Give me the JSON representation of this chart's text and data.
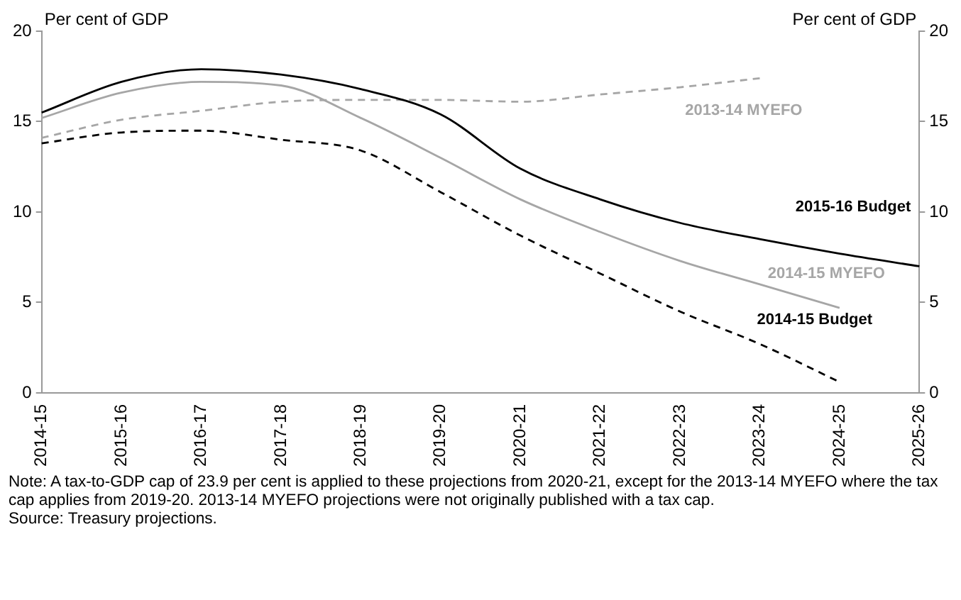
{
  "chart_data": {
    "type": "line",
    "ylabel": "Per cent of GDP",
    "y2label": "Per cent of GDP",
    "categories": [
      "2014-15",
      "2015-16",
      "2016-17",
      "2017-18",
      "2018-19",
      "2019-20",
      "2020-21",
      "2021-22",
      "2022-23",
      "2023-24",
      "2024-25",
      "2025-26"
    ],
    "series": [
      {
        "name": "2015-16 Budget",
        "color": "#000000",
        "line_style": "solid",
        "values": [
          15.5,
          17.2,
          17.9,
          17.6,
          16.8,
          15.4,
          12.4,
          10.7,
          9.4,
          8.5,
          7.7,
          7.0
        ]
      },
      {
        "name": "2014-15 MYEFO",
        "color": "#a6a6a6",
        "line_style": "solid",
        "values": [
          15.2,
          16.6,
          17.2,
          17.0,
          15.2,
          13.0,
          10.7,
          8.9,
          7.3,
          6.0,
          4.7,
          null
        ]
      },
      {
        "name": "2014-15 Budget",
        "color": "#000000",
        "line_style": "dashed",
        "values": [
          13.8,
          14.4,
          14.5,
          14.0,
          13.4,
          11.1,
          8.7,
          6.6,
          4.5,
          2.7,
          0.6,
          null
        ]
      },
      {
        "name": "2013-14 MYEFO",
        "color": "#a6a6a6",
        "line_style": "dashed",
        "values": [
          14.1,
          15.1,
          15.6,
          16.1,
          16.2,
          16.2,
          16.1,
          16.5,
          16.9,
          17.4,
          null,
          null
        ]
      }
    ],
    "ylim": [
      0,
      20
    ],
    "yticks": [
      0,
      5,
      10,
      15,
      20
    ],
    "y2lim": [
      0,
      20
    ],
    "y2ticks": [
      0,
      5,
      10,
      15,
      20
    ],
    "grid": false,
    "legend": false,
    "marker": "none",
    "annotations": [
      "Note: A tax-to-GDP cap of 23.9 per cent is applied to these projections from 2020-21, except for the 2013-14 MYEFO where the tax cap applies from 2019-20. 2013-14 MYEFO projections were not originally published with a tax cap.",
      "Source: Treasury projections."
    ]
  }
}
